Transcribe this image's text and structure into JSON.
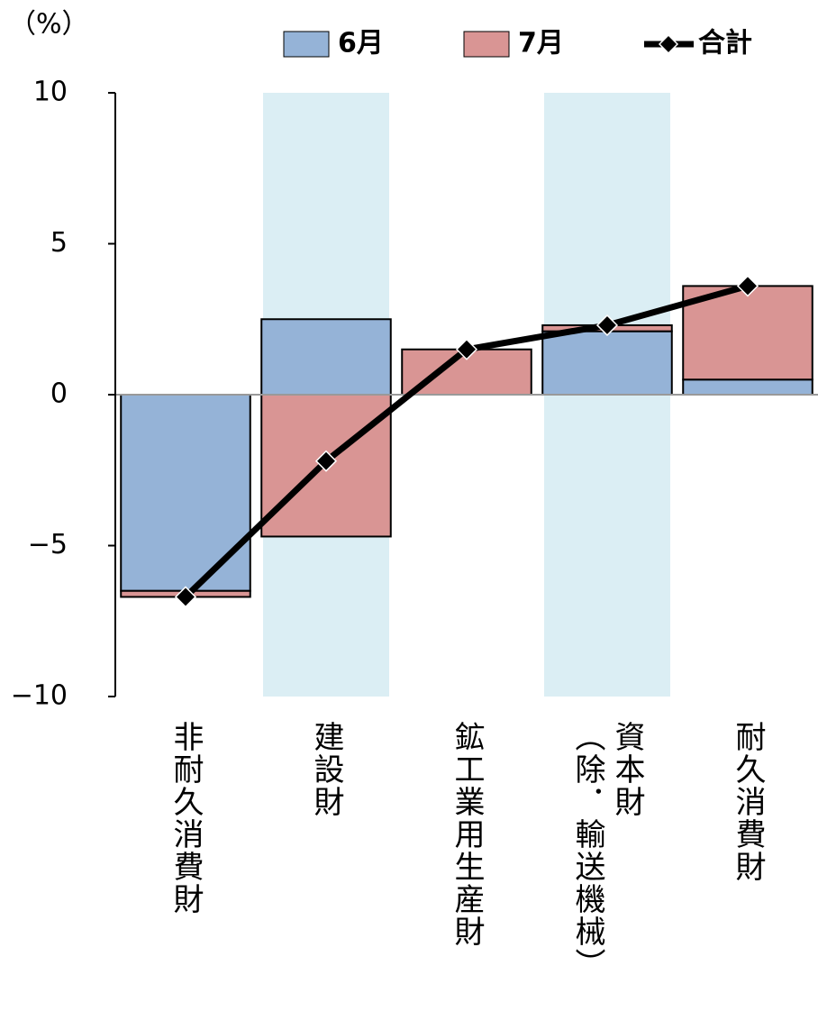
{
  "chart_data": {
    "type": "stacked_bar_line",
    "y_unit": "（%）",
    "categories": [
      "非耐久消費財",
      "建設財",
      "鉱工業用生産財",
      "資本財\n（除．輸送機械）",
      "耐久消費財"
    ],
    "series": [
      {
        "name": "6月",
        "color": "#95b3d7",
        "values": [
          -6.5,
          2.5,
          0,
          2.1,
          0.5
        ]
      },
      {
        "name": "7月",
        "color": "#d99594",
        "values": [
          -0.2,
          -4.7,
          1.5,
          0.2,
          3.1
        ]
      },
      {
        "name": "合計",
        "color": "#000000",
        "type": "line",
        "values": [
          -6.7,
          -2.2,
          1.5,
          2.3,
          3.6
        ]
      }
    ],
    "ylim": [
      -10,
      10
    ],
    "yticks": [
      {
        "value": -10,
        "label": "−10"
      },
      {
        "value": -5,
        "label": "−5"
      },
      0,
      5,
      10
    ]
  }
}
